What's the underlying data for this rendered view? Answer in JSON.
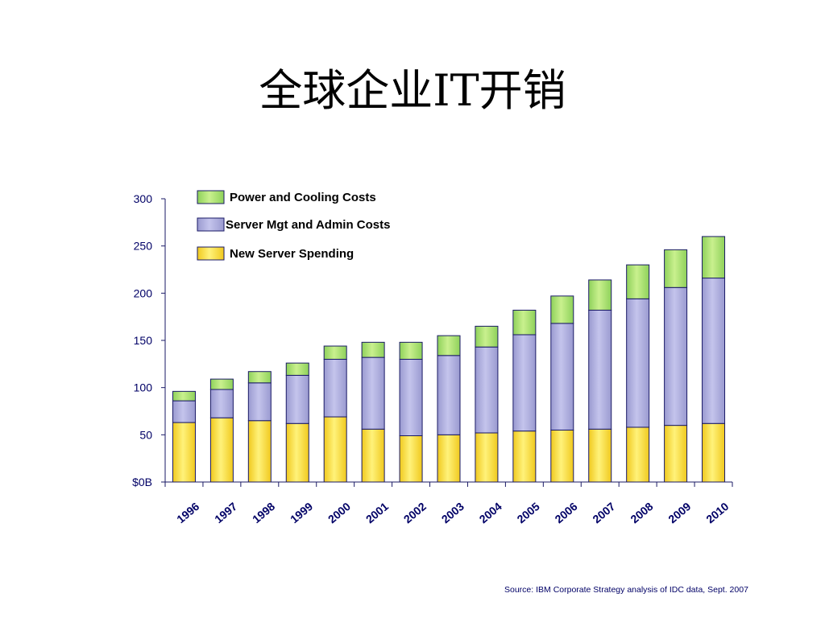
{
  "slide": {
    "title": "全球企业IT开销",
    "source": "Source: IBM Corporate Strategy analysis of IDC data, Sept. 2007"
  },
  "colors": {
    "power": "#8ed15a",
    "power_light": "#c9f08e",
    "server_mgt": "#9a9ad0",
    "server_mgt_light": "#c4c4ec",
    "new_server": "#f0c91e",
    "new_server_light": "#fff27a",
    "outline": "#1a1a66",
    "axis_text": "#000066"
  },
  "chart_data": {
    "type": "bar",
    "stacked": true,
    "title": "",
    "xlabel": "",
    "ylabel": "",
    "ylim": [
      0,
      300
    ],
    "yticks": [
      0,
      50,
      100,
      150,
      200,
      250,
      300
    ],
    "ytick_labels": [
      "$0B",
      "50",
      "100",
      "150",
      "200",
      "250",
      "300"
    ],
    "categories": [
      "1996",
      "1997",
      "1998",
      "1999",
      "2000",
      "2001",
      "2002",
      "2003",
      "2004",
      "2005",
      "2006",
      "2007",
      "2008",
      "2009",
      "2010"
    ],
    "series": [
      {
        "name": "New Server Spending",
        "key": "new_server",
        "values": [
          63,
          68,
          65,
          62,
          69,
          56,
          49,
          50,
          52,
          54,
          55,
          56,
          58,
          60,
          62
        ]
      },
      {
        "name": "Server Mgt and Admin Costs",
        "key": "server_mgt",
        "values": [
          23,
          30,
          40,
          51,
          61,
          76,
          81,
          84,
          91,
          102,
          113,
          126,
          136,
          146,
          154
        ]
      },
      {
        "name": "Power and Cooling Costs",
        "key": "power",
        "values": [
          10,
          11,
          12,
          13,
          14,
          16,
          18,
          21,
          22,
          26,
          29,
          32,
          36,
          40,
          44
        ]
      }
    ],
    "legend": {
      "placement": "top-left",
      "order": [
        "power",
        "server_mgt",
        "new_server"
      ],
      "labels": [
        "Power and Cooling Costs",
        "Server Mgt and Admin Costs",
        "New Server Spending"
      ]
    },
    "grid": false
  }
}
